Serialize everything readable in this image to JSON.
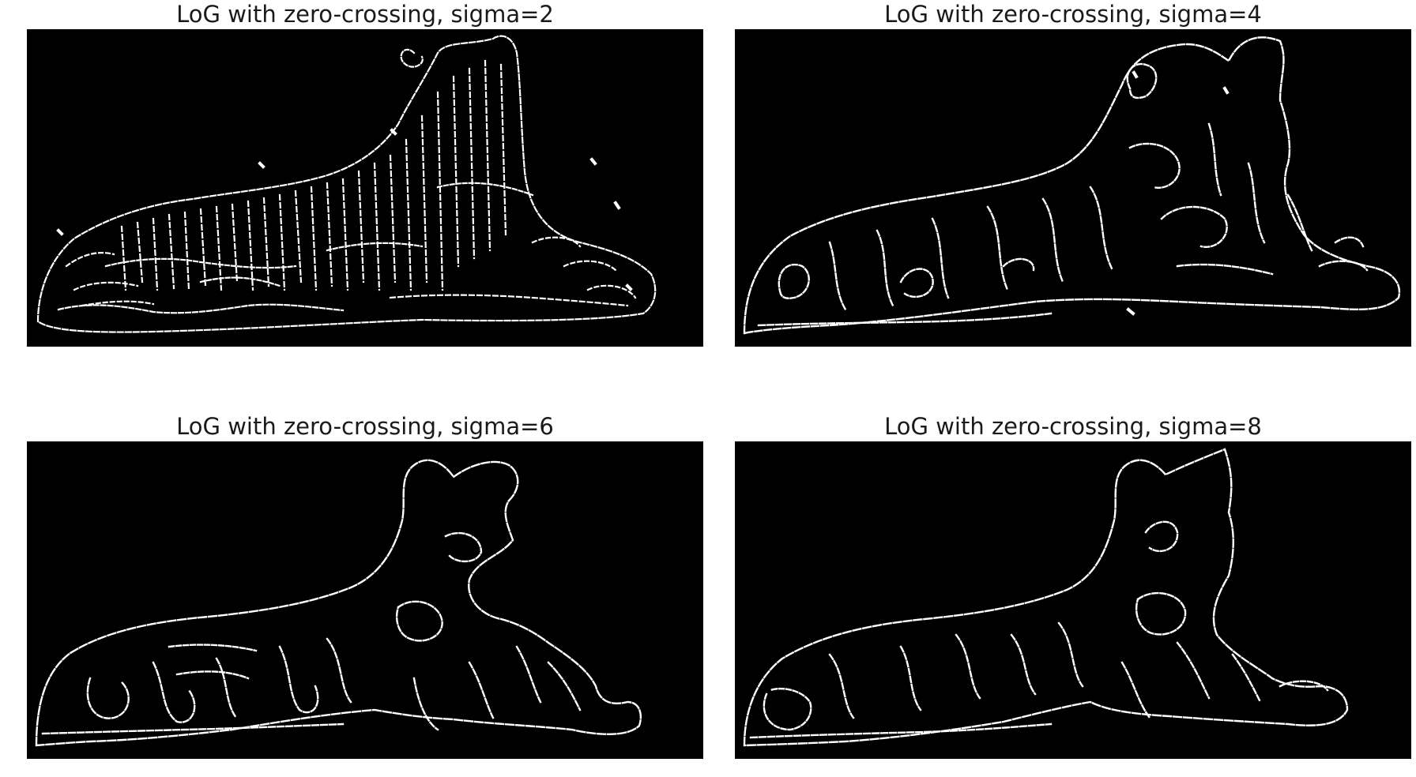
{
  "figure": {
    "background": "#ffffff",
    "image_background": "#000000",
    "edge_color": "#ffffff",
    "panels": [
      {
        "title": "LoG with zero-crossing, sigma=2",
        "sigma": 2
      },
      {
        "title": "LoG with zero-crossing, sigma=4",
        "sigma": 4
      },
      {
        "title": "LoG with zero-crossing, sigma=6",
        "sigma": 6
      },
      {
        "title": "LoG with zero-crossing, sigma=8",
        "sigma": 8
      }
    ]
  }
}
